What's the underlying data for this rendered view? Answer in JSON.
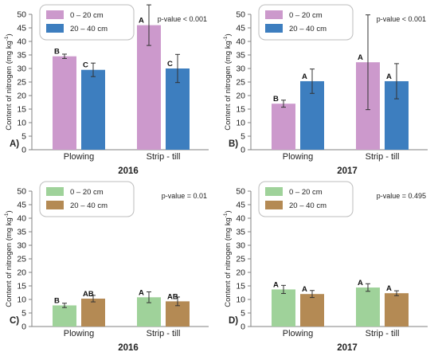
{
  "chart_data": [
    {
      "type": "bar",
      "panel_label": "A)",
      "year": "2016",
      "ylabel": "Content of nitrogen (mg kg",
      "ylabel_sup": "-1",
      "ylabel_close": ")",
      "ylim": [
        0,
        50
      ],
      "yticks": [
        0,
        5,
        10,
        15,
        20,
        25,
        30,
        35,
        40,
        45,
        50
      ],
      "categories": [
        "Plowing",
        "Strip - till"
      ],
      "pvalue": "p-value < 0.001",
      "series": [
        {
          "name": "0 – 20 cm",
          "color": "#cc99cc",
          "values": [
            34.5,
            46.0
          ],
          "errors": [
            0.8,
            7.5
          ],
          "letters": [
            "B",
            "A"
          ]
        },
        {
          "name": "20 – 40 cm",
          "color": "#3d7ebf",
          "values": [
            29.5,
            30.0
          ],
          "errors": [
            2.5,
            5.2
          ],
          "letters": [
            "C",
            "C"
          ]
        }
      ]
    },
    {
      "type": "bar",
      "panel_label": "B)",
      "year": "2017",
      "ylabel": "Content of nitrogen (mg kg",
      "ylabel_sup": "-1",
      "ylabel_close": ")",
      "ylim": [
        0,
        50
      ],
      "yticks": [
        0,
        5,
        10,
        15,
        20,
        25,
        30,
        35,
        40,
        45,
        50
      ],
      "categories": [
        "Plowing",
        "Strip - till"
      ],
      "pvalue": "p-value < 0.001",
      "series": [
        {
          "name": "0 – 20 cm",
          "color": "#cc99cc",
          "values": [
            17.0,
            32.3
          ],
          "errors": [
            1.3,
            17.5
          ],
          "letters": [
            "B",
            "A"
          ]
        },
        {
          "name": "20 – 40 cm",
          "color": "#3d7ebf",
          "values": [
            25.3,
            25.3
          ],
          "errors": [
            4.5,
            6.5
          ],
          "letters": [
            "A",
            "A"
          ]
        }
      ]
    },
    {
      "type": "bar",
      "panel_label": "C)",
      "year": "2016",
      "ylabel": "Content of nitrogen (mg kg",
      "ylabel_sup": "-1",
      "ylabel_close": ")",
      "ylim": [
        0,
        50
      ],
      "yticks": [
        0,
        5,
        10,
        15,
        20,
        25,
        30,
        35,
        40,
        45,
        50
      ],
      "categories": [
        "Plowing",
        "Strip - till"
      ],
      "pvalue": "p-value = 0.01",
      "series": [
        {
          "name": "0 – 20 cm",
          "color": "#9fd29a",
          "values": [
            7.8,
            10.8
          ],
          "errors": [
            0.8,
            2.0
          ],
          "letters": [
            "B",
            "A"
          ]
        },
        {
          "name": "20 – 40 cm",
          "color": "#b48a54",
          "values": [
            10.3,
            9.3
          ],
          "errors": [
            1.2,
            1.6
          ],
          "letters": [
            "AB",
            "AB"
          ]
        }
      ]
    },
    {
      "type": "bar",
      "panel_label": "D)",
      "year": "2017",
      "ylabel": "Content of nitrogen (mg kg",
      "ylabel_sup": "-1",
      "ylabel_close": ")",
      "ylim": [
        0,
        50
      ],
      "yticks": [
        0,
        5,
        10,
        15,
        20,
        25,
        30,
        35,
        40,
        45,
        50
      ],
      "categories": [
        "Plowing",
        "Strip - till"
      ],
      "pvalue": "p-value = 0.495",
      "series": [
        {
          "name": "0 – 20 cm",
          "color": "#9fd29a",
          "values": [
            13.7,
            14.4
          ],
          "errors": [
            1.5,
            1.4
          ],
          "letters": [
            "A",
            "A"
          ]
        },
        {
          "name": "20 – 40 cm",
          "color": "#b48a54",
          "values": [
            12.0,
            12.3
          ],
          "errors": [
            1.3,
            0.9
          ],
          "letters": [
            "A",
            "A"
          ]
        }
      ]
    }
  ]
}
